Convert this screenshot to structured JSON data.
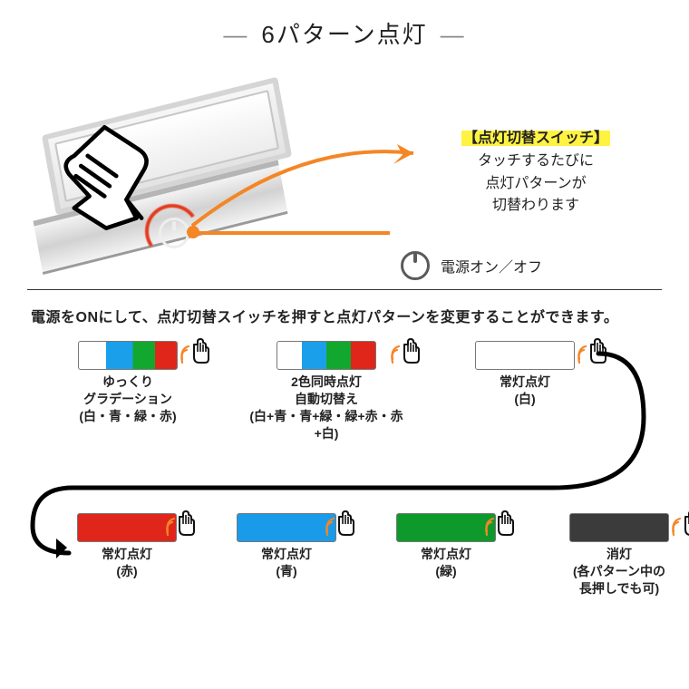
{
  "title": "6パターン点灯",
  "callout": {
    "highlight": "【点灯切替スイッチ】",
    "l1": "タッチするたびに",
    "l2": "点灯パターンが",
    "l3": "切替わります"
  },
  "power_label": "電源オン／オフ",
  "instruction": "電源をONにして、点灯切替スイッチを押すと点灯パターンを変更することができます。",
  "colors": {
    "orange": "#f48625",
    "highlight": "#fff341",
    "red": "#e43a1e",
    "blue": "#199bea",
    "green": "#0e9a2a",
    "darkgrey": "#3b3b3b"
  },
  "row1": [
    {
      "id": "gradation",
      "caption_l1": "ゆっくり",
      "caption_l2": "グラデーション",
      "caption_l3": "(白・青・緑・赤)",
      "swatch_css": "linear-gradient(90deg,#ffffff 0 28%,#1aa0ea 28% 55%,#12a82f 55% 78%,#e0261b 78% 100%)"
    },
    {
      "id": "dual-auto",
      "caption_l1": "2色同時点灯",
      "caption_l2": "自動切替え",
      "caption_l3": "(白+青・青+緑・緑+赤・赤+白)",
      "swatch_css": "linear-gradient(90deg,#ffffff 0 25%,#1aa0ea 25% 50%,#12a82f 50% 75%,#e0261b 75% 100%)"
    },
    {
      "id": "white",
      "caption_l1": "常灯点灯",
      "caption_l2": "(白)",
      "swatch_css": "#ffffff"
    }
  ],
  "row2": [
    {
      "id": "red",
      "caption_l1": "常灯点灯",
      "caption_l2": "(赤)",
      "swatch_css": "#e0261b"
    },
    {
      "id": "blue",
      "caption_l1": "常灯点灯",
      "caption_l2": "(青)",
      "swatch_css": "#199bea"
    },
    {
      "id": "green",
      "caption_l1": "常灯点灯",
      "caption_l2": "(緑)",
      "swatch_css": "#0e9a2a"
    },
    {
      "id": "off",
      "caption_l1": "消灯",
      "caption_l2": "(各パターン中の",
      "caption_l3": "長押しでも可)",
      "swatch_css": "#3b3b3b"
    }
  ]
}
